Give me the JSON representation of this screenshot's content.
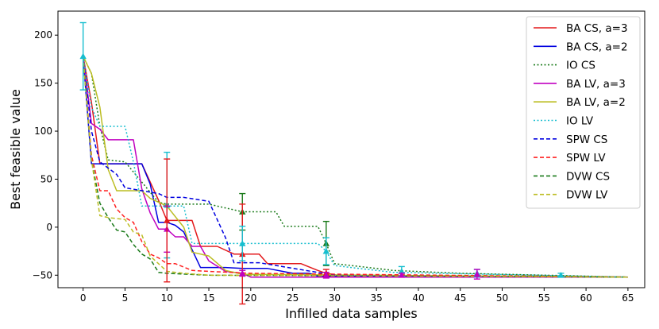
{
  "chart_data": {
    "type": "line",
    "title": "",
    "xlabel": "Infilled data samples",
    "ylabel": "Best feasible value",
    "xlim": [
      -3,
      67
    ],
    "ylim": [
      -63,
      225
    ],
    "xticks": [
      0,
      5,
      10,
      15,
      20,
      25,
      30,
      35,
      40,
      45,
      50,
      55,
      60,
      65
    ],
    "yticks": [
      -50,
      0,
      50,
      100,
      150,
      200
    ],
    "legend_position": "top-right",
    "series": [
      {
        "name": "BA CS, a=3",
        "color": "#e31a1c",
        "dash": "solid",
        "x": [
          0,
          1,
          2,
          7,
          9,
          10,
          13,
          14,
          16,
          18,
          19,
          21,
          22,
          24,
          26,
          28,
          29,
          31,
          65
        ],
        "y": [
          178,
          130,
          66,
          66,
          28,
          7,
          7,
          -20,
          -20,
          -28,
          -28,
          -28,
          -38,
          -38,
          -38,
          -45,
          -48,
          -51,
          -52
        ]
      },
      {
        "name": "BA CS, a=2",
        "color": "#0000e0",
        "dash": "solid",
        "x": [
          0,
          1,
          2,
          7,
          8,
          9,
          10,
          11,
          12,
          14,
          17,
          19,
          22,
          25,
          27,
          28,
          65
        ],
        "y": [
          178,
          66,
          66,
          66,
          45,
          5,
          5,
          2,
          -5,
          -42,
          -42,
          -43,
          -43,
          -48,
          -48,
          -51,
          -52
        ]
      },
      {
        "name": "IO CS",
        "color": "#1a7a1a",
        "dash": "dot",
        "x": [
          0,
          1,
          2,
          3,
          5,
          9,
          10,
          15,
          19,
          23,
          24,
          28,
          29,
          30,
          35,
          37,
          45,
          65
        ],
        "y": [
          178,
          160,
          105,
          70,
          68,
          26,
          24,
          24,
          16,
          16,
          1,
          1,
          -17,
          -38,
          -43,
          -45,
          -48,
          -52
        ]
      },
      {
        "name": "BA LV, a=3",
        "color": "#c000c0",
        "dash": "solid",
        "x": [
          0,
          1,
          2,
          3,
          6,
          7,
          8,
          9,
          10,
          11,
          12,
          13,
          14,
          15,
          17,
          19,
          20,
          65
        ],
        "y": [
          178,
          108,
          102,
          91,
          91,
          40,
          15,
          -2,
          -2,
          -10,
          -10,
          -20,
          -20,
          -35,
          -46,
          -48,
          -52,
          -52
        ]
      },
      {
        "name": "BA LV, a=2",
        "color": "#bcbd22",
        "dash": "solid",
        "x": [
          0,
          1,
          2,
          3,
          4,
          7,
          8,
          10,
          12,
          13,
          15,
          17,
          19,
          65
        ],
        "y": [
          178,
          160,
          125,
          60,
          38,
          38,
          30,
          22,
          0,
          -26,
          -30,
          -45,
          -49,
          -52
        ]
      },
      {
        "name": "IO LV",
        "color": "#17becf",
        "dash": "dot",
        "x": [
          0,
          1,
          2,
          5,
          6,
          7,
          12,
          13,
          18,
          19,
          20,
          28,
          29,
          30,
          37,
          65
        ],
        "y": [
          178,
          125,
          105,
          105,
          68,
          22,
          22,
          -17,
          -17,
          -17,
          -17,
          -17,
          -25,
          -40,
          -47,
          -52
        ]
      },
      {
        "name": "SPW CS",
        "color": "#0000e0",
        "dash": "dash",
        "x": [
          0,
          1,
          2,
          4,
          5,
          9,
          10,
          12,
          15,
          17,
          18,
          21,
          30,
          65
        ],
        "y": [
          178,
          100,
          68,
          55,
          41,
          35,
          31,
          31,
          27,
          -11,
          -37,
          -37,
          -50,
          -52
        ]
      },
      {
        "name": "SPW LV",
        "color": "#ff2020",
        "dash": "dash",
        "x": [
          0,
          1,
          2,
          3,
          4,
          5,
          6,
          7,
          8,
          9,
          10,
          11,
          13,
          15,
          20,
          65
        ],
        "y": [
          178,
          75,
          38,
          38,
          19,
          10,
          5,
          -15,
          -28,
          -32,
          -38,
          -38,
          -45,
          -46,
          -48,
          -52
        ]
      },
      {
        "name": "DVW CS",
        "color": "#1a7a1a",
        "dash": "dash",
        "x": [
          0,
          1,
          2,
          3,
          4,
          5,
          6,
          7,
          8,
          9,
          10,
          15,
          65
        ],
        "y": [
          178,
          70,
          25,
          10,
          -3,
          -5,
          -18,
          -28,
          -33,
          -47,
          -48,
          -50,
          -52
        ]
      },
      {
        "name": "DVW LV",
        "color": "#bcbd22",
        "dash": "dash",
        "x": [
          0,
          1,
          2,
          3,
          5,
          6,
          7,
          8,
          10,
          12,
          15,
          65
        ],
        "y": [
          178,
          70,
          12,
          10,
          8,
          -5,
          -8,
          -30,
          -46,
          -48,
          -50,
          -52
        ]
      }
    ],
    "markers": [
      {
        "series": "IO LV",
        "color": "#17becf",
        "x": 0,
        "y": 178,
        "err": 35
      },
      {
        "series": "IO LV",
        "color": "#17becf",
        "x": 10,
        "y": 23,
        "err": 55
      },
      {
        "series": "BA LV, a=3",
        "color": "#c000c0",
        "x": 10,
        "y": -2,
        "err": 24
      },
      {
        "series": "BA CS, a=3",
        "color": "#e31a1c",
        "x": 10,
        "y": 7,
        "err": 64
      },
      {
        "series": "DVW CS",
        "color": "#1a7a1a",
        "x": 19,
        "y": 16,
        "err": 19
      },
      {
        "series": "BA CS, a=3",
        "color": "#e31a1c",
        "x": 19,
        "y": -28,
        "err": 52
      },
      {
        "series": "IO LV",
        "color": "#17becf",
        "x": 19,
        "y": -17,
        "err": 18
      },
      {
        "series": "BA LV, a=3",
        "color": "#c000c0",
        "x": 19,
        "y": -48,
        "err": 3
      },
      {
        "series": "DVW CS",
        "color": "#1a7a1a",
        "x": 29,
        "y": -17,
        "err": 23
      },
      {
        "series": "IO LV",
        "color": "#17becf",
        "x": 29,
        "y": -25,
        "err": 14
      },
      {
        "series": "BA CS, a=3",
        "color": "#e31a1c",
        "x": 29,
        "y": -48,
        "err": 4
      },
      {
        "series": "BA LV, a=3",
        "color": "#c000c0",
        "x": 29,
        "y": -50,
        "err": 3
      },
      {
        "series": "IO LV",
        "color": "#17becf",
        "x": 38,
        "y": -46,
        "err": 5
      },
      {
        "series": "BA LV, a=3",
        "color": "#c000c0",
        "x": 38,
        "y": -50,
        "err": 2
      },
      {
        "series": "IO LV",
        "color": "#17becf",
        "x": 47,
        "y": -48,
        "err": 4
      },
      {
        "series": "BA LV, a=3",
        "color": "#c000c0",
        "x": 47,
        "y": -49,
        "err": 5
      },
      {
        "series": "IO LV",
        "color": "#17becf",
        "x": 57,
        "y": -50,
        "err": 2
      }
    ]
  }
}
